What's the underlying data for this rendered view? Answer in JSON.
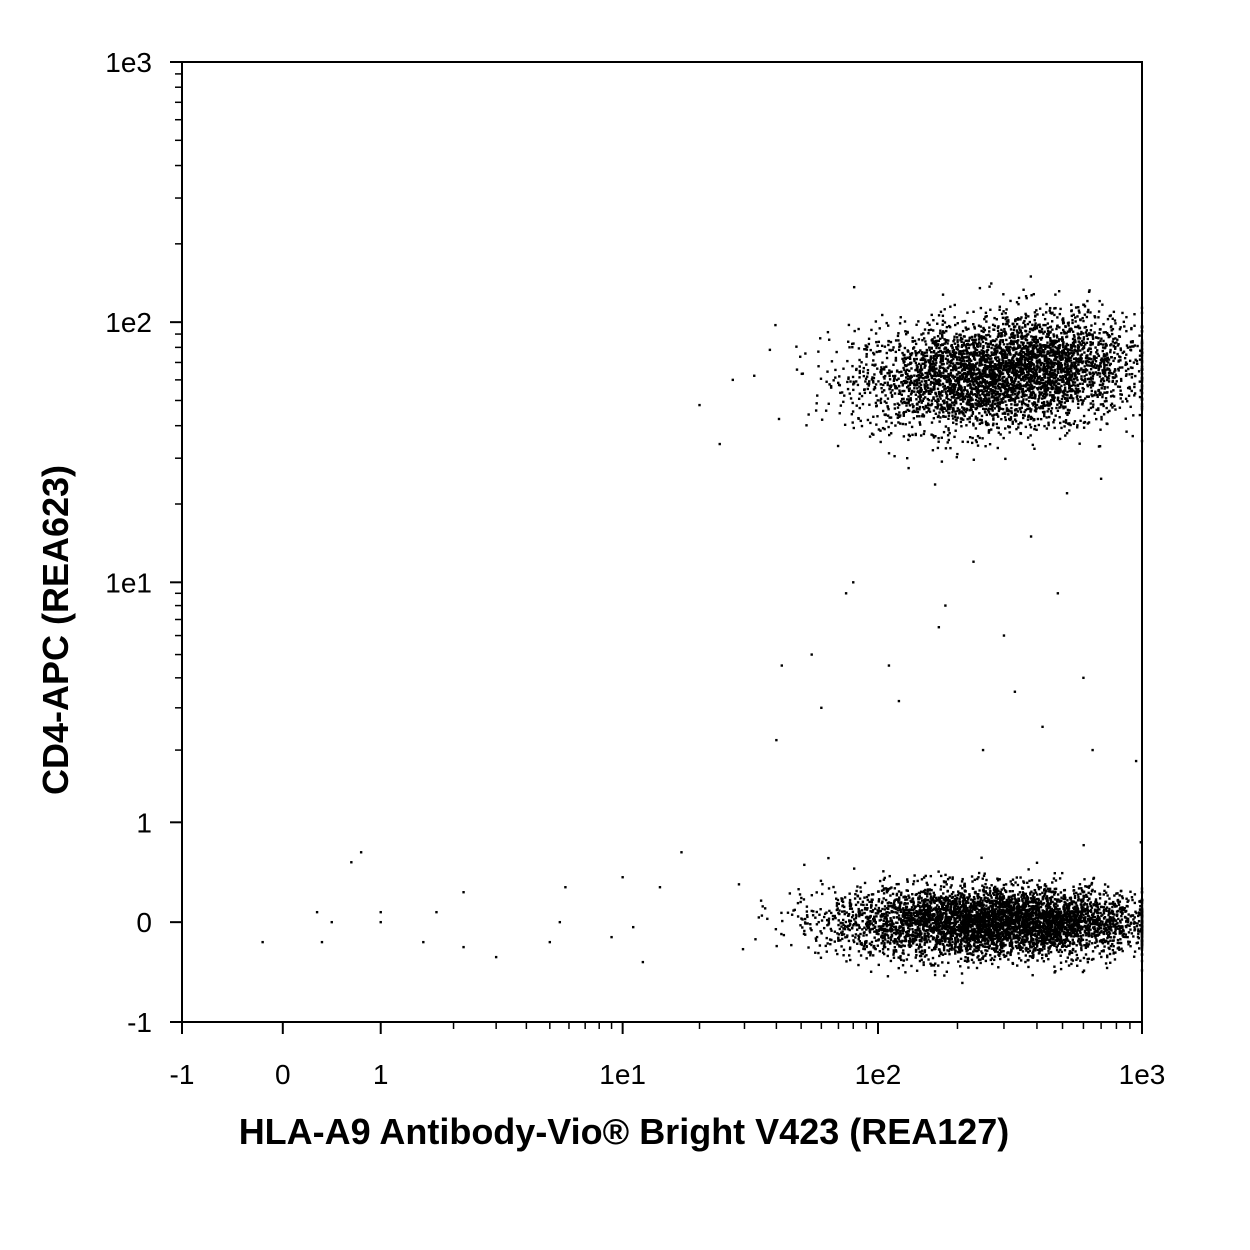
{
  "chart_data": {
    "type": "scatter",
    "title": "",
    "xlabel": "HLA-A9 Antibody-Vio® Bright V423 (REA127)",
    "ylabel": "CD4-APC (REA623)",
    "x_scale": "hybrid-log",
    "y_scale": "hybrid-log",
    "x_ticks": [
      {
        "value": -1,
        "label": "-1"
      },
      {
        "value": 0,
        "label": "0"
      },
      {
        "value": 1,
        "label": "1"
      },
      {
        "value": 10,
        "label": "1e1"
      },
      {
        "value": 100,
        "label": "1e2"
      },
      {
        "value": 1000,
        "label": "1e3"
      }
    ],
    "y_ticks": [
      {
        "value": -1,
        "label": "-1"
      },
      {
        "value": 0,
        "label": "0"
      },
      {
        "value": 1,
        "label": "1"
      },
      {
        "value": 10,
        "label": "1e1"
      },
      {
        "value": 100,
        "label": "1e2"
      },
      {
        "value": 1000,
        "label": "1e3"
      }
    ],
    "xlim": [
      -1,
      1000
    ],
    "ylim": [
      -1,
      1000
    ],
    "grid": false,
    "point_color": "#000000",
    "populations": [
      {
        "x_center": 220,
        "y_center": 60,
        "x_spread_decades": 0.22,
        "y_spread_decades": 0.1,
        "count": 2600
      },
      {
        "x_center": 450,
        "y_center": 70,
        "x_spread_decades": 0.18,
        "y_spread_decades": 0.1,
        "count": 1800
      },
      {
        "x_center": 200,
        "y_center": 0.0,
        "x_spread_decades": 0.25,
        "y_spread": 0.18,
        "count": 3200
      },
      {
        "x_center": 450,
        "y_center": 0.0,
        "x_spread_decades": 0.2,
        "y_spread": 0.16,
        "count": 2000
      }
    ],
    "sparse_points": [
      {
        "x": -0.2,
        "y": -0.2
      },
      {
        "x": 0.35,
        "y": 0.1
      },
      {
        "x": 0.4,
        "y": -0.2
      },
      {
        "x": 0.5,
        "y": 0.0
      },
      {
        "x": 0.7,
        "y": 0.6
      },
      {
        "x": 0.8,
        "y": 0.7
      },
      {
        "x": 1.0,
        "y": 0.1
      },
      {
        "x": 1.0,
        "y": 0.0
      },
      {
        "x": 1.5,
        "y": -0.2
      },
      {
        "x": 1.7,
        "y": 0.1
      },
      {
        "x": 2.2,
        "y": 0.3
      },
      {
        "x": 2.2,
        "y": -0.25
      },
      {
        "x": 3.0,
        "y": -0.35
      },
      {
        "x": 5.0,
        "y": -0.2
      },
      {
        "x": 5.5,
        "y": 0.0
      },
      {
        "x": 5.8,
        "y": 0.35
      },
      {
        "x": 9.0,
        "y": -0.15
      },
      {
        "x": 10.0,
        "y": 0.45
      },
      {
        "x": 11.0,
        "y": -0.05
      },
      {
        "x": 12.0,
        "y": -0.4
      },
      {
        "x": 14.0,
        "y": 0.35
      },
      {
        "x": 17.0,
        "y": 0.7
      },
      {
        "x": 20.0,
        "y": 48.0
      },
      {
        "x": 24.0,
        "y": 34.0
      },
      {
        "x": 27.0,
        "y": 60.0
      },
      {
        "x": 40.0,
        "y": 2.2
      },
      {
        "x": 42.0,
        "y": 4.5
      },
      {
        "x": 55.0,
        "y": 5.0
      },
      {
        "x": 60.0,
        "y": 3.0
      },
      {
        "x": 75.0,
        "y": 9.0
      },
      {
        "x": 80.0,
        "y": 10.0
      },
      {
        "x": 110.0,
        "y": 4.5
      },
      {
        "x": 120.0,
        "y": 3.2
      },
      {
        "x": 170.0,
        "y": 6.5
      },
      {
        "x": 180.0,
        "y": 8.0
      },
      {
        "x": 230.0,
        "y": 12.0
      },
      {
        "x": 250.0,
        "y": 2.0
      },
      {
        "x": 300.0,
        "y": 6.0
      },
      {
        "x": 330.0,
        "y": 3.5
      },
      {
        "x": 380.0,
        "y": 15.0
      },
      {
        "x": 420.0,
        "y": 2.5
      },
      {
        "x": 480.0,
        "y": 9.0
      },
      {
        "x": 520.0,
        "y": 22.0
      },
      {
        "x": 600.0,
        "y": 4.0
      },
      {
        "x": 650.0,
        "y": 2.0
      },
      {
        "x": 700.0,
        "y": 25.0
      },
      {
        "x": 950.0,
        "y": 1.8
      },
      {
        "x": 990.0,
        "y": 0.8
      }
    ]
  }
}
